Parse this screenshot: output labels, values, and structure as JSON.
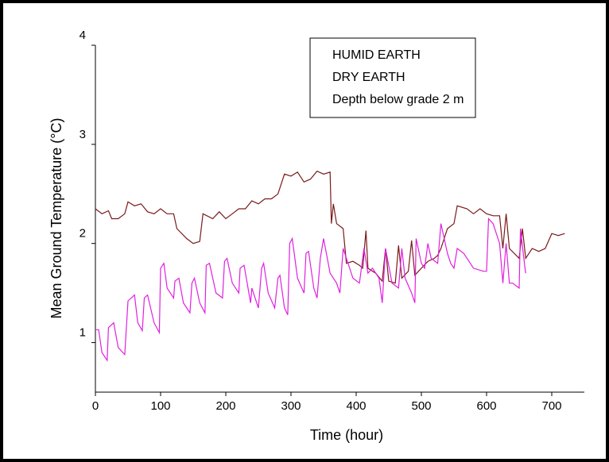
{
  "chart_data": {
    "type": "line",
    "xlabel": "Time (hour)",
    "ylabel": "Mean Ground Temperature (°C)",
    "annotation": "Depth below grade 2 m",
    "legend": "upper right",
    "xlim": [
      0,
      750
    ],
    "xticks": [
      0,
      100,
      200,
      300,
      400,
      500,
      600,
      700
    ],
    "ylim": [
      0.5,
      4
    ],
    "yticks": [
      1,
      2,
      3,
      4
    ],
    "series": [
      {
        "name": "HUMID EARTH",
        "color": "#7a1a1a",
        "x": [
          0,
          10,
          20,
          25,
          35,
          45,
          50,
          60,
          70,
          80,
          90,
          100,
          110,
          120,
          125,
          140,
          150,
          160,
          165,
          180,
          190,
          200,
          210,
          220,
          230,
          240,
          250,
          260,
          270,
          280,
          290,
          300,
          310,
          320,
          330,
          340,
          350,
          360,
          362,
          365,
          370,
          380,
          385,
          395,
          405,
          410,
          415,
          418,
          430,
          440,
          445,
          450,
          460,
          465,
          470,
          480,
          485,
          490,
          500,
          510,
          520,
          525,
          530,
          540,
          550,
          555,
          570,
          580,
          590,
          600,
          610,
          620,
          625,
          630,
          635,
          650,
          655,
          660,
          670,
          680,
          690,
          700,
          710,
          720
        ],
        "values": [
          2.35,
          2.3,
          2.33,
          2.25,
          2.25,
          2.3,
          2.42,
          2.38,
          2.4,
          2.32,
          2.3,
          2.35,
          2.3,
          2.3,
          2.15,
          2.05,
          2.0,
          2.02,
          2.3,
          2.25,
          2.32,
          2.25,
          2.3,
          2.35,
          2.35,
          2.43,
          2.4,
          2.45,
          2.45,
          2.5,
          2.7,
          2.68,
          2.72,
          2.62,
          2.65,
          2.73,
          2.7,
          2.72,
          2.2,
          2.4,
          2.2,
          2.15,
          1.8,
          1.82,
          1.78,
          1.75,
          2.13,
          1.75,
          1.7,
          1.62,
          1.95,
          1.62,
          1.6,
          1.98,
          1.65,
          1.72,
          2.03,
          1.68,
          1.75,
          1.82,
          1.85,
          1.88,
          1.95,
          2.15,
          2.2,
          2.38,
          2.35,
          2.3,
          2.35,
          2.3,
          2.28,
          2.28,
          1.95,
          2.3,
          1.95,
          1.85,
          2.15,
          1.85,
          1.95,
          1.92,
          1.95,
          2.1,
          2.08,
          2.1
        ]
      },
      {
        "name": "DRY EARTH",
        "color": "#e020e0",
        "x": [
          0,
          5,
          10,
          18,
          20,
          28,
          35,
          45,
          50,
          60,
          65,
          72,
          75,
          80,
          90,
          98,
          100,
          105,
          110,
          120,
          122,
          128,
          135,
          145,
          148,
          152,
          160,
          168,
          170,
          175,
          185,
          195,
          198,
          202,
          210,
          220,
          222,
          228,
          238,
          240,
          245,
          250,
          255,
          258,
          265,
          275,
          280,
          283,
          290,
          295,
          298,
          302,
          310,
          320,
          323,
          327,
          335,
          340,
          345,
          350,
          360,
          370,
          375,
          380,
          385,
          395,
          405,
          412,
          418,
          425,
          435,
          440,
          445,
          455,
          465,
          470,
          475,
          485,
          490,
          492,
          500,
          505,
          510,
          515,
          525,
          530,
          540,
          545,
          550,
          555,
          565,
          580,
          595,
          600,
          603,
          610,
          620,
          625,
          630,
          635,
          640,
          650,
          652,
          658,
          660
        ],
        "values": [
          1.13,
          1.13,
          0.9,
          0.82,
          1.15,
          1.2,
          0.95,
          0.88,
          1.42,
          1.48,
          1.2,
          1.12,
          1.45,
          1.48,
          1.2,
          1.1,
          1.75,
          1.8,
          1.55,
          1.45,
          1.62,
          1.65,
          1.4,
          1.3,
          1.6,
          1.65,
          1.4,
          1.3,
          1.78,
          1.8,
          1.5,
          1.45,
          1.82,
          1.85,
          1.6,
          1.5,
          1.75,
          1.78,
          1.4,
          1.55,
          1.45,
          1.35,
          1.75,
          1.8,
          1.5,
          1.35,
          1.65,
          1.68,
          1.35,
          1.28,
          2.0,
          2.05,
          1.65,
          1.5,
          1.9,
          1.92,
          1.55,
          1.45,
          1.85,
          2.05,
          1.7,
          1.6,
          1.5,
          1.95,
          1.85,
          1.65,
          1.6,
          1.95,
          1.7,
          1.75,
          1.65,
          1.4,
          1.95,
          1.6,
          1.55,
          1.95,
          1.65,
          1.5,
          1.4,
          2.05,
          1.8,
          1.75,
          2.0,
          1.85,
          1.8,
          2.2,
          1.9,
          1.8,
          1.75,
          1.95,
          1.9,
          1.75,
          1.72,
          1.72,
          2.25,
          2.2,
          2.0,
          1.6,
          2.0,
          1.6,
          1.6,
          1.55,
          2.15,
          1.8,
          1.7
        ]
      }
    ]
  }
}
